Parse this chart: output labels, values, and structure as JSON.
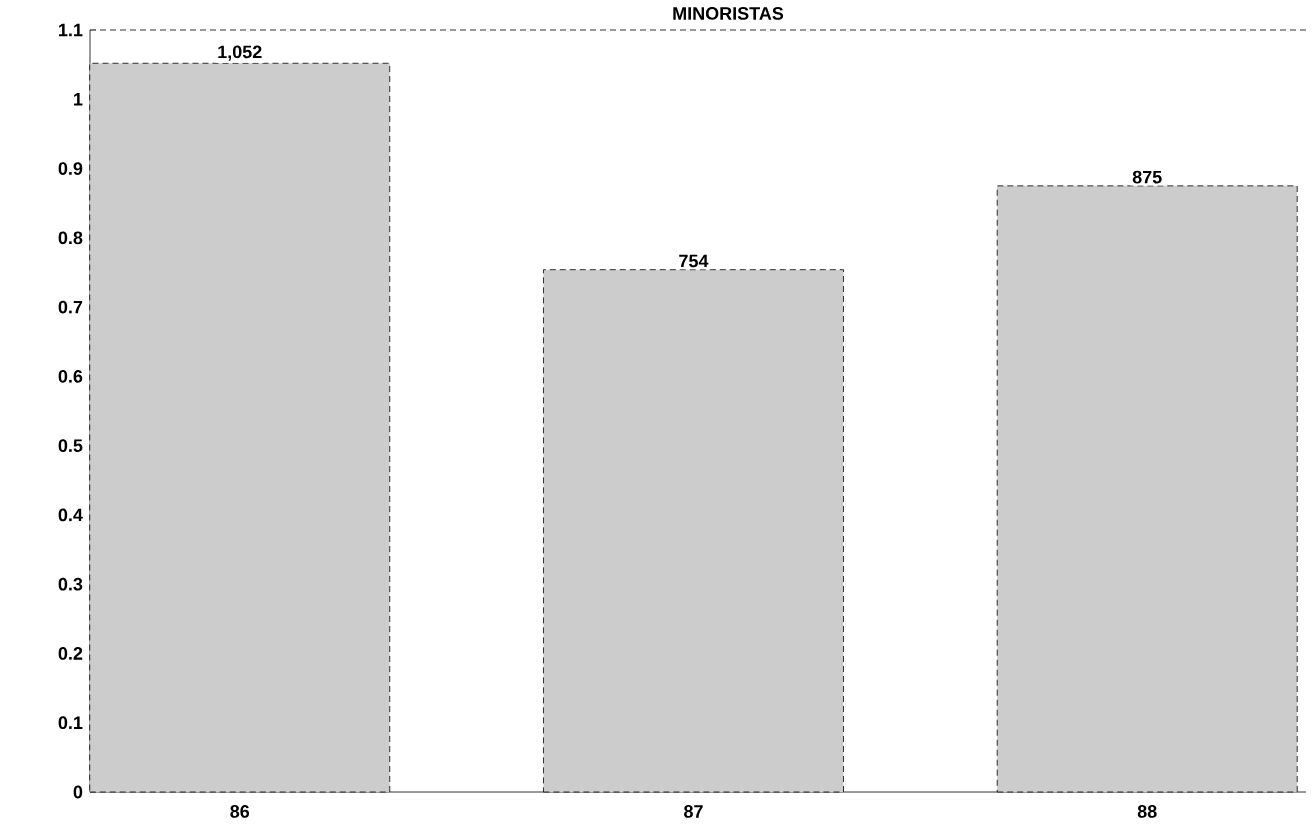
{
  "chart_data": {
    "type": "bar",
    "title": "MINORISTAS",
    "categories": [
      "86",
      "87",
      "88"
    ],
    "values": [
      1.052,
      0.754,
      0.875
    ],
    "annotations": [
      {
        "text": "1,052",
        "x": "86",
        "y": 1.052
      },
      {
        "text": "754",
        "x": "87",
        "y": 0.754
      },
      {
        "text": "875",
        "x": "88",
        "y": 0.875
      }
    ],
    "color": "#cccccc",
    "ylim": [
      0,
      1.1
    ],
    "yticks": [
      0,
      0.1,
      0.2,
      0.3,
      0.4,
      0.5,
      0.6,
      0.7,
      0.8,
      0.9,
      1,
      1.1
    ]
  }
}
